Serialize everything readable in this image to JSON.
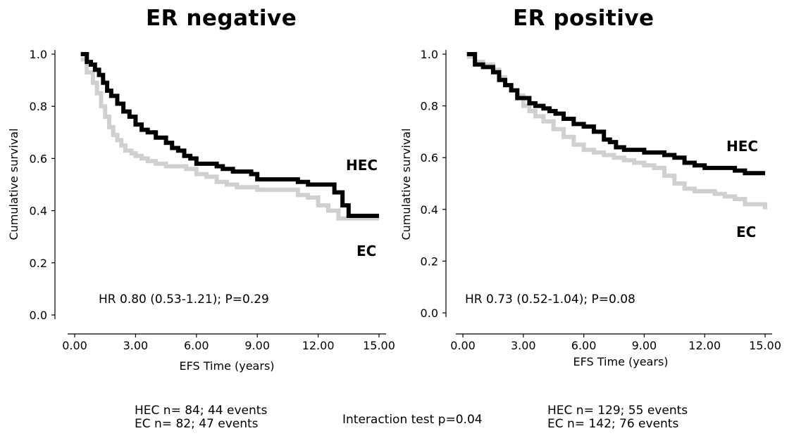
{
  "chart_data": [
    {
      "type": "line",
      "title": "ER negative",
      "xlabel": "EFS Time (years)",
      "ylabel": "Cumulative survival",
      "xlim": [
        0,
        15
      ],
      "ylim": [
        0,
        1
      ],
      "xticks": [
        "0.00",
        "3.00",
        "6.00",
        "9.00",
        "12.00",
        "15.00"
      ],
      "yticks": [
        "0.0",
        "0.2",
        "0.4",
        "0.6",
        "0.8",
        "1.0"
      ],
      "annotation": "HR 0.80 (0.53-1.21); P=0.29",
      "series": [
        {
          "name": "HEC",
          "color": "#000000",
          "x": [
            0.3,
            0.6,
            0.8,
            1.0,
            1.2,
            1.4,
            1.6,
            1.8,
            2.1,
            2.4,
            2.7,
            3.0,
            3.3,
            3.6,
            4.0,
            4.5,
            4.8,
            5.1,
            5.4,
            5.7,
            6.0,
            6.5,
            7.0,
            7.3,
            7.8,
            8.3,
            8.7,
            9.0,
            9.5,
            10.0,
            10.5,
            11.0,
            11.5,
            12.3,
            12.8,
            13.2,
            13.5,
            15.0
          ],
          "y": [
            1.0,
            0.97,
            0.96,
            0.94,
            0.92,
            0.89,
            0.86,
            0.84,
            0.81,
            0.78,
            0.76,
            0.73,
            0.71,
            0.7,
            0.68,
            0.66,
            0.64,
            0.63,
            0.61,
            0.6,
            0.58,
            0.58,
            0.57,
            0.56,
            0.55,
            0.55,
            0.54,
            0.52,
            0.52,
            0.52,
            0.52,
            0.51,
            0.5,
            0.5,
            0.47,
            0.42,
            0.38,
            0.38
          ]
        },
        {
          "name": "EC",
          "color": "#d0d0d0",
          "x": [
            0.3,
            0.6,
            0.9,
            1.1,
            1.3,
            1.5,
            1.7,
            1.9,
            2.1,
            2.3,
            2.5,
            2.8,
            3.0,
            3.3,
            3.6,
            4.0,
            4.5,
            5.0,
            5.5,
            6.0,
            6.5,
            7.0,
            7.5,
            8.0,
            9.0,
            10.0,
            10.5,
            11.0,
            11.5,
            12.0,
            12.5,
            13.0,
            15.0
          ],
          "y": [
            0.98,
            0.93,
            0.89,
            0.85,
            0.8,
            0.76,
            0.72,
            0.69,
            0.67,
            0.65,
            0.63,
            0.62,
            0.61,
            0.6,
            0.59,
            0.58,
            0.57,
            0.57,
            0.56,
            0.54,
            0.53,
            0.51,
            0.5,
            0.49,
            0.48,
            0.48,
            0.48,
            0.46,
            0.45,
            0.42,
            0.4,
            0.37,
            0.37
          ]
        }
      ],
      "labels": {
        "HEC": "HEC",
        "EC": "EC"
      }
    },
    {
      "type": "line",
      "title": "ER positive",
      "xlabel": "EFS Time (years)",
      "ylabel": "Cumulative survival",
      "xlim": [
        0,
        15
      ],
      "ylim": [
        0,
        1
      ],
      "xticks": [
        "0.00",
        "3.00",
        "6.00",
        "9.00",
        "12.00",
        "15.00"
      ],
      "yticks": [
        "0.0",
        "0.2",
        "0.4",
        "0.6",
        "0.8",
        "1.0"
      ],
      "annotation": "HR 0.73 (0.52-1.04); P=0.08",
      "series": [
        {
          "name": "HEC",
          "color": "#000000",
          "x": [
            0.2,
            0.6,
            1.0,
            1.5,
            1.8,
            2.1,
            2.4,
            2.7,
            3.0,
            3.3,
            3.6,
            4.0,
            4.3,
            4.6,
            5.0,
            5.5,
            6.0,
            6.5,
            7.0,
            7.3,
            7.6,
            8.0,
            8.5,
            9.0,
            9.5,
            10.0,
            10.5,
            11.0,
            11.5,
            12.0,
            12.5,
            13.0,
            13.5,
            14.0,
            15.0
          ],
          "y": [
            1.0,
            0.96,
            0.95,
            0.93,
            0.9,
            0.88,
            0.86,
            0.83,
            0.83,
            0.81,
            0.8,
            0.79,
            0.78,
            0.77,
            0.75,
            0.73,
            0.72,
            0.7,
            0.67,
            0.66,
            0.64,
            0.63,
            0.63,
            0.62,
            0.62,
            0.61,
            0.6,
            0.58,
            0.57,
            0.56,
            0.56,
            0.56,
            0.55,
            0.54,
            0.54
          ]
        },
        {
          "name": "EC",
          "color": "#d0d0d0",
          "x": [
            0.2,
            0.6,
            1.0,
            1.5,
            1.8,
            2.1,
            2.4,
            2.7,
            3.0,
            3.3,
            3.6,
            4.0,
            4.5,
            5.0,
            5.5,
            6.0,
            6.5,
            7.0,
            7.5,
            8.0,
            8.5,
            9.0,
            9.5,
            10.0,
            10.5,
            11.0,
            11.5,
            12.0,
            12.5,
            13.0,
            13.5,
            14.0,
            15.0
          ],
          "y": [
            0.99,
            0.97,
            0.96,
            0.94,
            0.91,
            0.88,
            0.86,
            0.84,
            0.8,
            0.78,
            0.76,
            0.74,
            0.71,
            0.68,
            0.65,
            0.63,
            0.62,
            0.61,
            0.6,
            0.59,
            0.58,
            0.57,
            0.56,
            0.53,
            0.5,
            0.48,
            0.47,
            0.47,
            0.46,
            0.45,
            0.44,
            0.42,
            0.4
          ]
        }
      ],
      "labels": {
        "HEC": "HEC",
        "EC": "EC"
      }
    }
  ],
  "footer": {
    "neg_line1": "HEC n= 84; 44 events",
    "neg_line2": "EC n= 82; 47 events",
    "interaction": "Interaction test p=0.04",
    "pos_line1": "HEC n= 129; 55 events",
    "pos_line2": "EC n= 142; 76 events"
  }
}
